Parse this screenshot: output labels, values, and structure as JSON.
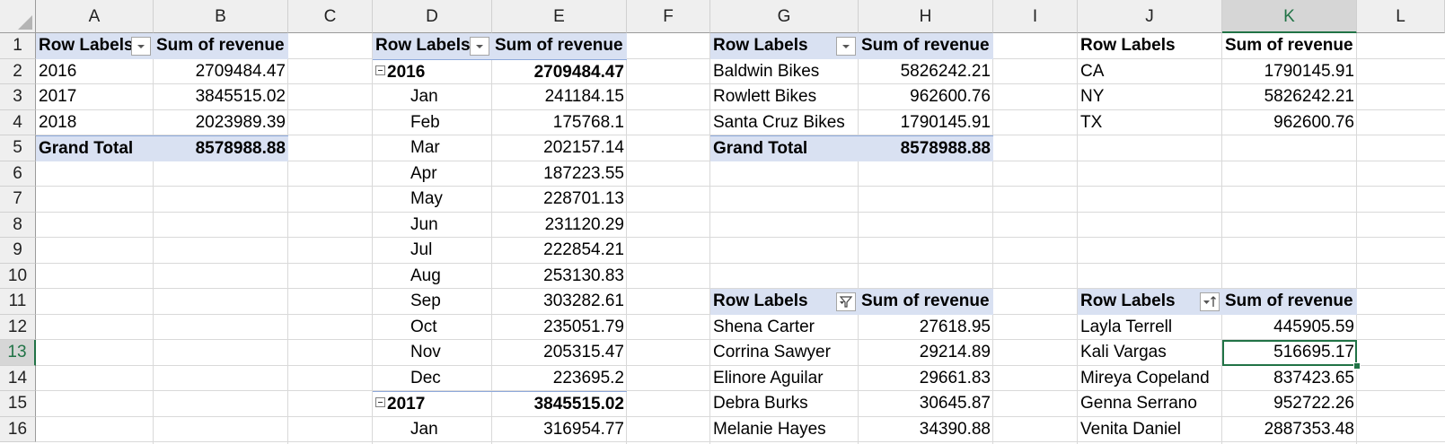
{
  "columns": [
    "A",
    "B",
    "C",
    "D",
    "E",
    "F",
    "G",
    "H",
    "I",
    "J",
    "K",
    "L"
  ],
  "rows": [
    "1",
    "2",
    "3",
    "4",
    "5",
    "6",
    "7",
    "8",
    "9",
    "10",
    "11",
    "12",
    "13",
    "14",
    "15",
    "16"
  ],
  "active_cell": {
    "column": "K",
    "row": "13"
  },
  "pivot_year": {
    "header": {
      "row_labels": "Row Labels",
      "value": "Sum of revenue"
    },
    "rows": [
      {
        "label": "2016",
        "value": "2709484.47"
      },
      {
        "label": "2017",
        "value": "3845515.02"
      },
      {
        "label": "2018",
        "value": "2023989.39"
      }
    ],
    "total": {
      "label": "Grand Total",
      "value": "8578988.88"
    }
  },
  "pivot_month": {
    "header": {
      "row_labels": "Row Labels",
      "value": "Sum of revenue"
    },
    "rows": [
      {
        "label": "2016",
        "value": "2709484.47",
        "group": true
      },
      {
        "label": "Jan",
        "value": "241184.15"
      },
      {
        "label": "Feb",
        "value": "175768.1"
      },
      {
        "label": "Mar",
        "value": "202157.14"
      },
      {
        "label": "Apr",
        "value": "187223.55"
      },
      {
        "label": "May",
        "value": "228701.13"
      },
      {
        "label": "Jun",
        "value": "231120.29"
      },
      {
        "label": "Jul",
        "value": "222854.21"
      },
      {
        "label": "Aug",
        "value": "253130.83"
      },
      {
        "label": "Sep",
        "value": "303282.61"
      },
      {
        "label": "Oct",
        "value": "235051.79"
      },
      {
        "label": "Nov",
        "value": "205315.47"
      },
      {
        "label": "Dec",
        "value": "223695.2"
      },
      {
        "label": "2017",
        "value": "3845515.02",
        "group": true
      },
      {
        "label": "Jan",
        "value": "316954.77"
      }
    ]
  },
  "pivot_store": {
    "header": {
      "row_labels": "Row Labels",
      "value": "Sum of revenue"
    },
    "rows": [
      {
        "label": "Baldwin Bikes",
        "value": "5826242.21"
      },
      {
        "label": "Rowlett Bikes",
        "value": "962600.76"
      },
      {
        "label": "Santa Cruz Bikes",
        "value": "1790145.91"
      }
    ],
    "total": {
      "label": "Grand Total",
      "value": "8578988.88"
    }
  },
  "table_state": {
    "header": {
      "row_labels": "Row Labels",
      "value": "Sum of revenue"
    },
    "rows": [
      {
        "label": "CA",
        "value": "1790145.91"
      },
      {
        "label": "NY",
        "value": "5826242.21"
      },
      {
        "label": "TX",
        "value": "962600.76"
      }
    ]
  },
  "pivot_customer": {
    "header": {
      "row_labels": "Row Labels",
      "value": "Sum of revenue"
    },
    "rows": [
      {
        "label": "Shena Carter",
        "value": "27618.95"
      },
      {
        "label": "Corrina Sawyer",
        "value": "29214.89"
      },
      {
        "label": "Elinore Aguilar",
        "value": "29661.83"
      },
      {
        "label": "Debra Burks",
        "value": "30645.87"
      },
      {
        "label": "Melanie Hayes",
        "value": "34390.88"
      }
    ]
  },
  "pivot_staff": {
    "header": {
      "row_labels": "Row Labels",
      "value": "Sum of revenue"
    },
    "rows": [
      {
        "label": "Layla Terrell",
        "value": "445905.59"
      },
      {
        "label": "Kali Vargas",
        "value": "516695.17"
      },
      {
        "label": "Mireya Copeland",
        "value": "837423.65"
      },
      {
        "label": "Genna Serrano",
        "value": "952722.26"
      },
      {
        "label": "Venita Daniel",
        "value": "2887353.48"
      }
    ]
  },
  "icons": {
    "dropdown": "chevron-down-icon",
    "filtered_dropdown": "filter-icon",
    "sort_dropdown": "sort-icon",
    "collapse": "minus-icon"
  },
  "colors": {
    "pivot_header": "#d9e1f2",
    "pivot_border": "#8ea9db",
    "selection": "#217346",
    "grid": "#d9d9d9",
    "header_bg": "#efefef"
  }
}
